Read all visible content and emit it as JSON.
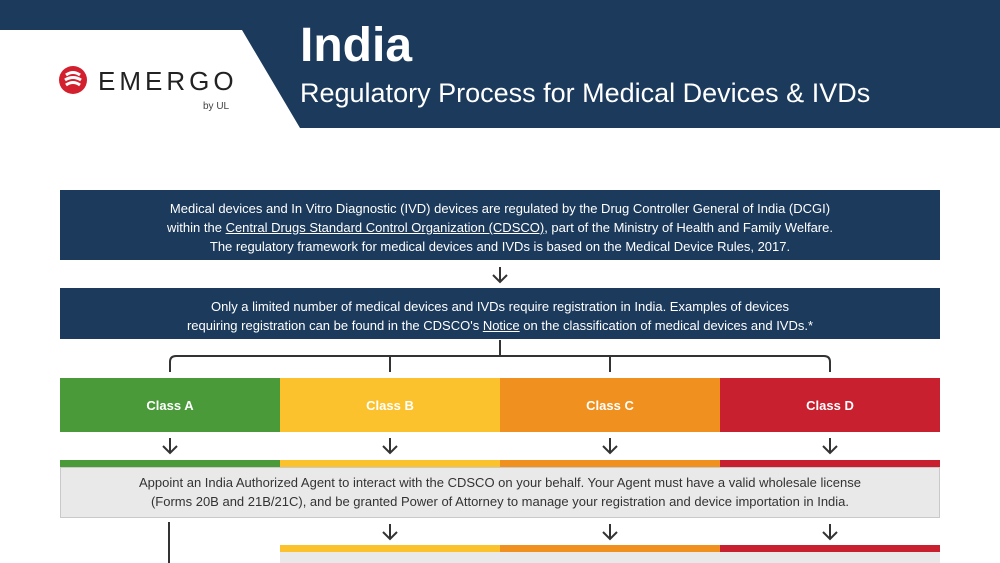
{
  "header": {
    "logo_text": "EMERGO",
    "logo_sub": "by UL",
    "title": "India",
    "subtitle": "Regulatory Process for Medical Devices & IVDs"
  },
  "box1": {
    "line1": "Medical devices and In Vitro Diagnostic (IVD) devices are regulated by the Drug Controller General of India (DCGI)",
    "line2_pre": "within the ",
    "line2_link": "Central Drugs Standard Control Organization (CDSCO)",
    "line2_post": ", part of the Ministry of Health and Family Welfare.",
    "line3": "The regulatory framework for medical devices and IVDs is based on the Medical Device Rules, 2017."
  },
  "box2": {
    "line1": "Only a limited number of medical devices and IVDs require registration in India. Examples of devices",
    "line2_pre": "requiring registration can be found in the CDSCO's ",
    "line2_link": "Notice",
    "line2_post": " on the classification of medical devices and IVDs.*"
  },
  "classes": [
    {
      "label": "Class A",
      "color": "#4a9a3a"
    },
    {
      "label": "Class B",
      "color": "#fcc22d"
    },
    {
      "label": "Class C",
      "color": "#f0901f"
    },
    {
      "label": "Class D",
      "color": "#c8202e"
    }
  ],
  "agent": {
    "line1": "Appoint an India Authorized Agent to interact with the CDSCO on your behalf. Your Agent must have a valid wholesale license",
    "line2": "(Forms 20B and 21B/21C), and be granted Power of Attorney to manage your registration and device importation in India."
  },
  "colors": {
    "navy": "#1b3a5c",
    "green": "#4a9a3a",
    "yellow": "#fcc22d",
    "orange": "#f0901f",
    "red": "#c8202e"
  }
}
